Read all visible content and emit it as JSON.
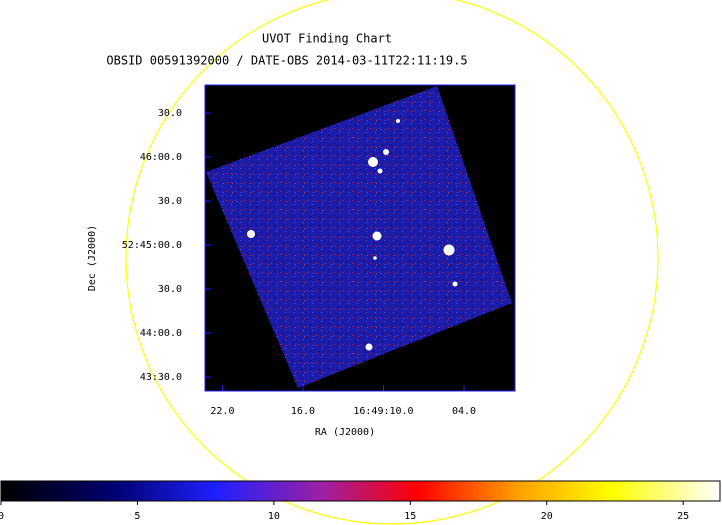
{
  "chart_data": {
    "type": "image",
    "title": "UVOT Finding Chart",
    "subtitle": "OBSID 00591392000 / DATE-OBS 2014-03-11T22:11:19.5",
    "xlabel": "RA (J2000)",
    "ylabel": "Dec (J2000)",
    "xlim": [
      23.3,
      0.2
    ],
    "xticks": [
      {
        "value": 22,
        "label": "22.0"
      },
      {
        "value": 16,
        "label": "16.0"
      },
      {
        "value": 10,
        "label": "16:49:10.0"
      },
      {
        "value": 4,
        "label": "04.0"
      }
    ],
    "ylim": [
      2600.5,
      2809.1
    ],
    "yticks": [
      {
        "value": 2790,
        "label": "30.0"
      },
      {
        "value": 2760,
        "label": "46:00.0"
      },
      {
        "value": 2730,
        "label": "30.0"
      },
      {
        "value": 2700,
        "label": "52:45:00.0"
      },
      {
        "value": 2670,
        "label": "30.0"
      },
      {
        "value": 2640,
        "label": "44:00.0"
      },
      {
        "value": 2610,
        "label": "43:30.0"
      }
    ],
    "clim": [
      0,
      26.35
    ],
    "cticks": [
      0,
      5,
      10,
      15,
      20,
      25
    ]
  }
}
